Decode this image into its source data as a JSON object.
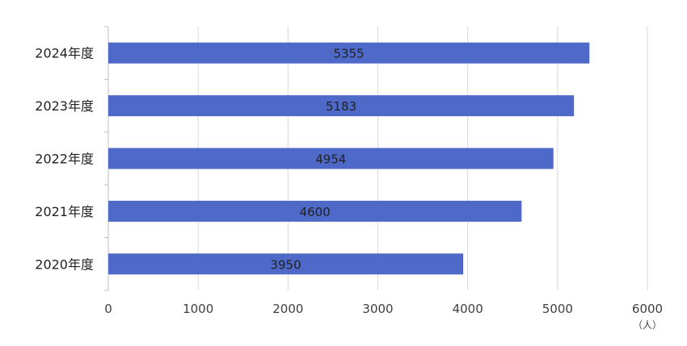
{
  "chart_data": {
    "type": "bar",
    "orientation": "horizontal",
    "categories": [
      "2024年度",
      "2023年度",
      "2022年度",
      "2021年度",
      "2020年度"
    ],
    "values": [
      5355,
      5183,
      4954,
      4600,
      3950
    ],
    "data_labels": [
      "5355",
      "5183",
      "4954",
      "4600",
      "3950"
    ],
    "xlim": [
      0,
      6000
    ],
    "xticks": [
      "0",
      "1000",
      "2000",
      "3000",
      "4000",
      "5000",
      "6000"
    ],
    "xunit": "（人）",
    "bar_color": "#4e69c7",
    "grid": true
  }
}
